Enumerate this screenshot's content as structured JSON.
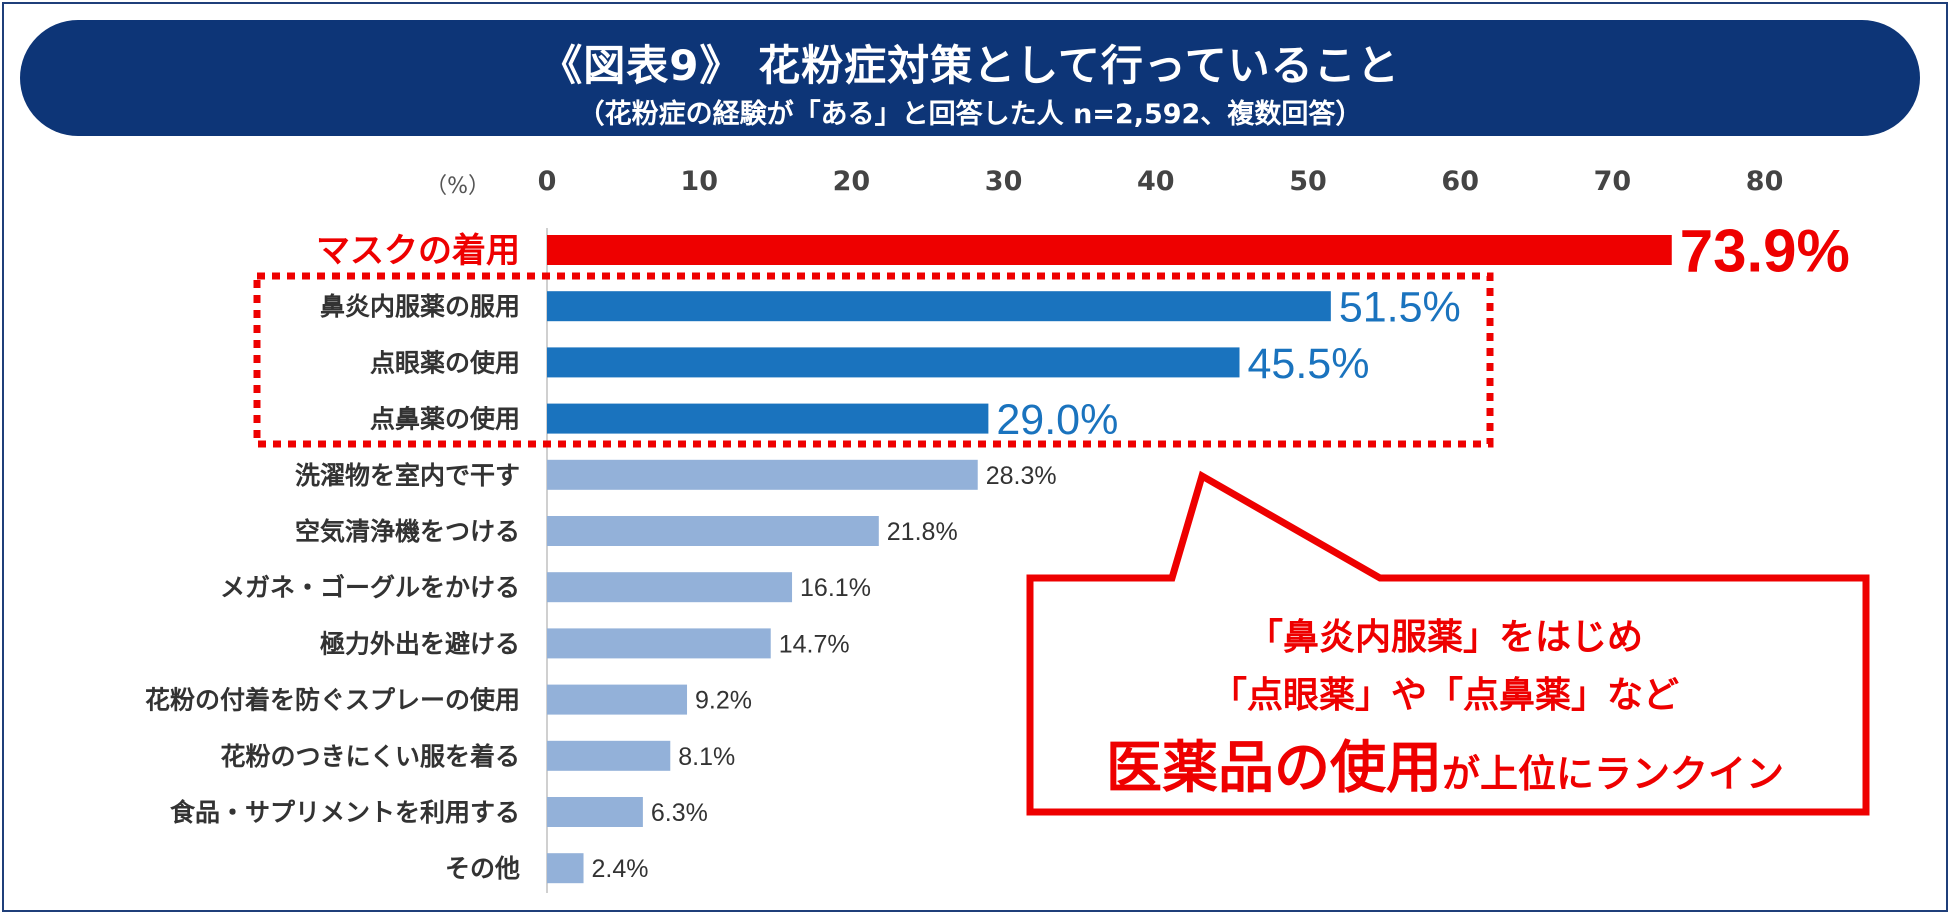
{
  "header": {
    "title": "《図表9》 花粉症対策として行っていること",
    "subtitle": "（花粉症の経験が「ある」と回答した人 n=2,592、複数回答）"
  },
  "colors": {
    "navy": "#0d3577",
    "red": "#ee0000",
    "blue": "#1a73be",
    "light_blue": "#93b1d9"
  },
  "chart_data": {
    "type": "bar",
    "orientation": "horizontal",
    "title": "花粉症対策として行っていること",
    "unit_label": "（%）",
    "xlim": [
      0,
      80
    ],
    "ticks": [
      "0",
      "10",
      "20",
      "30",
      "40",
      "50",
      "60",
      "70",
      "80"
    ],
    "tick_values": [
      0,
      10,
      20,
      30,
      40,
      50,
      60,
      70,
      80
    ],
    "categories": [
      "マスクの着用",
      "鼻炎内服薬の服用",
      "点眼薬の使用",
      "点鼻薬の使用",
      "洗濯物を室内で干す",
      "空気清浄機をつける",
      "メガネ・ゴーグルをかける",
      "極力外出を避ける",
      "花粉の付着を防ぐスプレーの使用",
      "花粉のつきにくい服を着る",
      "食品・サプリメントを利用する",
      "その他"
    ],
    "values": [
      73.9,
      51.5,
      45.5,
      29.0,
      28.3,
      21.8,
      16.1,
      14.7,
      9.2,
      8.1,
      6.3,
      2.4
    ],
    "value_labels": [
      "73.9%",
      "51.5%",
      "45.5%",
      "29.0%",
      "28.3%",
      "21.8%",
      "16.1%",
      "14.7%",
      "9.2%",
      "8.1%",
      "6.3%",
      "2.4%"
    ],
    "groups": [
      "top",
      "highlight",
      "highlight",
      "highlight",
      "other",
      "other",
      "other",
      "other",
      "other",
      "other",
      "other",
      "other"
    ]
  },
  "callout": {
    "line1": "「鼻炎内服薬」をはじめ",
    "line2": "「点眼薬」や「点鼻薬」など",
    "line3_big": "医薬品の使用",
    "line3_small": "が上位にランクイン"
  }
}
